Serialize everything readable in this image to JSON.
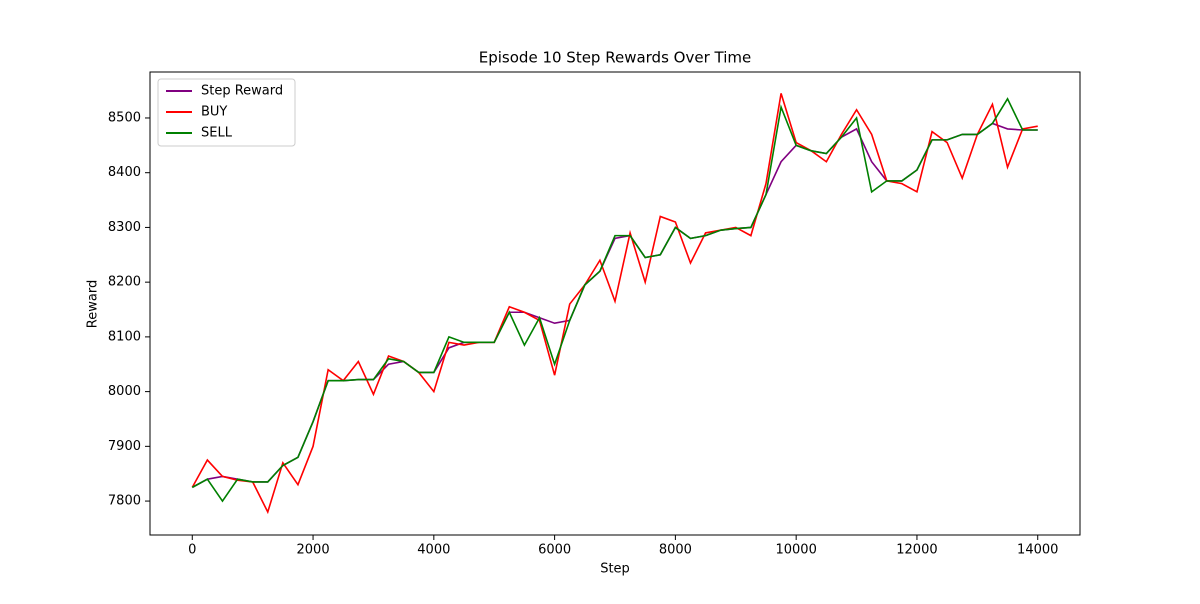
{
  "chart_data": {
    "type": "line",
    "title": "Episode 10 Step Rewards Over Time",
    "xlabel": "Step",
    "ylabel": "Reward",
    "x": [
      0,
      250,
      500,
      750,
      1000,
      1250,
      1500,
      1750,
      2000,
      2250,
      2500,
      2750,
      3000,
      3250,
      3500,
      3750,
      4000,
      4250,
      4500,
      4750,
      5000,
      5250,
      5500,
      5750,
      6000,
      6250,
      6500,
      6750,
      7000,
      7250,
      7500,
      7750,
      8000,
      8250,
      8500,
      8750,
      9000,
      9250,
      9500,
      9750,
      10000,
      10250,
      10500,
      10750,
      11000,
      11250,
      11500,
      11750,
      12000,
      12250,
      12500,
      12750,
      13000,
      13250,
      13500,
      13750,
      14000
    ],
    "series": [
      {
        "name": "Step Reward",
        "color": "#800080",
        "values": [
          7825,
          7840,
          7845,
          7840,
          7835,
          7835,
          7865,
          7880,
          7945,
          8020,
          8020,
          8022,
          8022,
          8050,
          8055,
          8035,
          8035,
          8080,
          8090,
          8090,
          8090,
          8145,
          8145,
          8135,
          8125,
          8130,
          8195,
          8220,
          8280,
          8285,
          8245,
          8250,
          8300,
          8280,
          8285,
          8295,
          8298,
          8300,
          8360,
          8420,
          8450,
          8440,
          8435,
          8465,
          8480,
          8420,
          8385,
          8385,
          8405,
          8460,
          8460,
          8470,
          8470,
          8490,
          8480,
          8478,
          8478
        ]
      },
      {
        "name": "BUY",
        "color": "#ff0000",
        "values": [
          7825,
          7875,
          7845,
          7838,
          7835,
          7780,
          7870,
          7830,
          7900,
          8040,
          8020,
          8055,
          7995,
          8065,
          8055,
          8035,
          8000,
          8090,
          8085,
          8090,
          8090,
          8155,
          8145,
          8130,
          8030,
          8160,
          8195,
          8240,
          8165,
          8290,
          8200,
          8320,
          8310,
          8235,
          8290,
          8295,
          8300,
          8285,
          8380,
          8545,
          8455,
          8440,
          8420,
          8470,
          8515,
          8470,
          8385,
          8380,
          8365,
          8475,
          8455,
          8390,
          8470,
          8525,
          8410,
          8480,
          8485
        ]
      },
      {
        "name": "SELL",
        "color": "#008000",
        "values": [
          7825,
          7840,
          7800,
          7840,
          7835,
          7835,
          7865,
          7880,
          7945,
          8020,
          8020,
          8022,
          8022,
          8060,
          8055,
          8035,
          8035,
          8100,
          8090,
          8090,
          8090,
          8145,
          8085,
          8135,
          8050,
          8130,
          8195,
          8220,
          8285,
          8285,
          8245,
          8250,
          8300,
          8280,
          8285,
          8295,
          8298,
          8300,
          8360,
          8520,
          8450,
          8440,
          8435,
          8465,
          8500,
          8365,
          8385,
          8385,
          8405,
          8460,
          8460,
          8470,
          8470,
          8490,
          8535,
          8478,
          8478
        ]
      }
    ],
    "xlim": [
      -700,
      14700
    ],
    "ylim": [
      7738,
      8584
    ],
    "xticks": [
      0,
      2000,
      4000,
      6000,
      8000,
      10000,
      12000,
      14000
    ],
    "yticks": [
      7800,
      7900,
      8000,
      8100,
      8200,
      8300,
      8400,
      8500
    ],
    "legend": "upper left"
  }
}
